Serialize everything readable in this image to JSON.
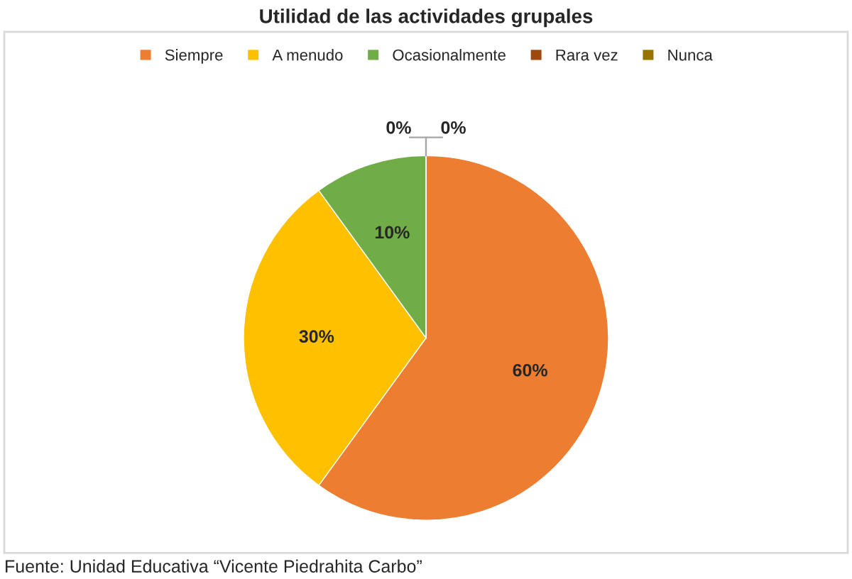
{
  "chart_data": {
    "type": "pie",
    "title": "Utilidad de las actividades grupales",
    "categories": [
      "Siempre",
      "A menudo",
      "Ocasionalmente",
      "Rara vez",
      "Nunca"
    ],
    "values": [
      60,
      30,
      10,
      0,
      0
    ],
    "colors": [
      "#ed7d31",
      "#ffc000",
      "#70ad47",
      "#9e480e",
      "#997300"
    ],
    "value_labels": [
      "60%",
      "30%",
      "10%",
      "0%",
      "0%"
    ],
    "legend": "top",
    "annotations": [
      "Fuente: Unidad Educativa “Vicente Piedrahita Carbo”"
    ]
  }
}
